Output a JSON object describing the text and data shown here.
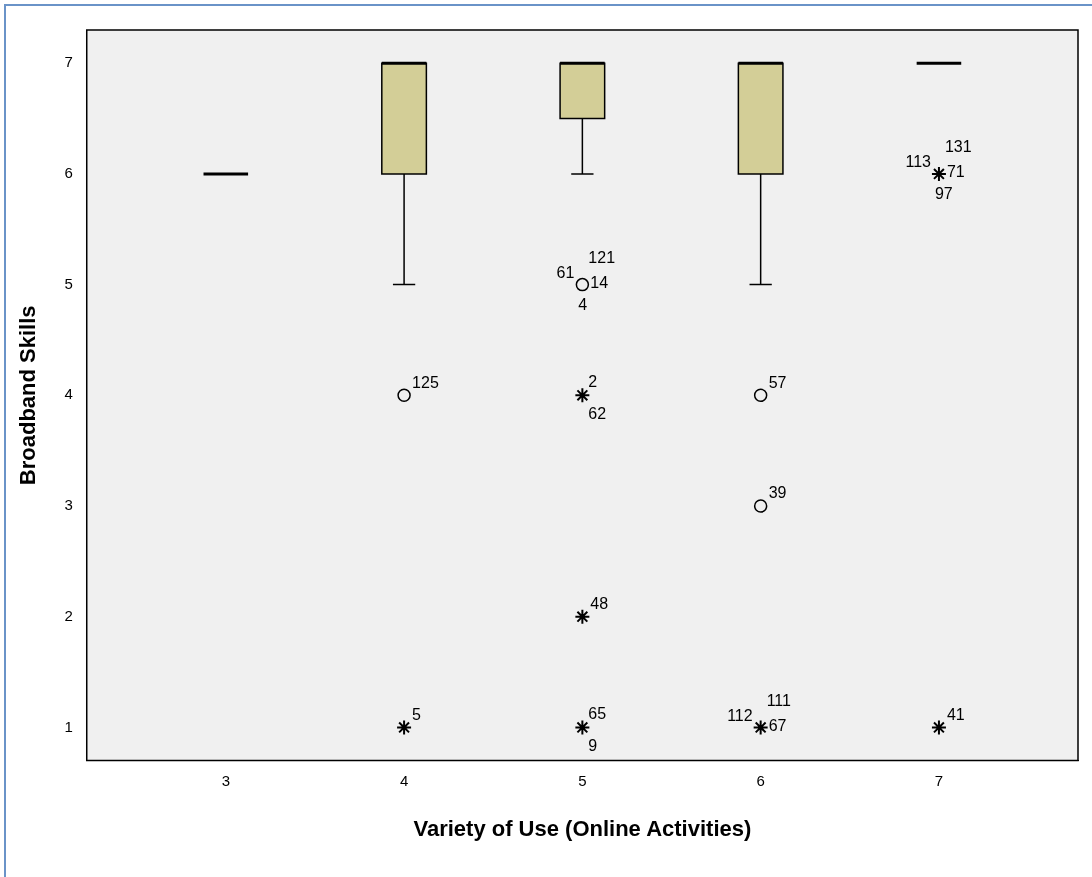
{
  "chart_data": {
    "type": "box",
    "xlabel": "Variety of Use (Online Activities)",
    "ylabel": "Broadband Skills",
    "categories": [
      "3",
      "4",
      "5",
      "6",
      "7"
    ],
    "ylim": [
      0.7,
      7.3
    ],
    "yticks": [
      1,
      2,
      3,
      4,
      5,
      6,
      7
    ],
    "grid": false,
    "legend": false,
    "colors": [
      "#000000",
      "#d3ce97",
      "#d3ce97",
      "#d3ce97",
      "#000000"
    ],
    "boxes": [
      {
        "low": 6,
        "q1": 6,
        "median": 6,
        "q3": 6,
        "high": 6
      },
      {
        "low": 5,
        "q1": 6,
        "median": 7,
        "q3": 7,
        "high": 7
      },
      {
        "low": 6,
        "q1": 6.5,
        "median": 7,
        "q3": 7,
        "high": 7
      },
      {
        "low": 5,
        "q1": 6,
        "median": 7,
        "q3": 7,
        "high": 7
      },
      {
        "low": 7,
        "q1": 7,
        "median": 7,
        "q3": 7,
        "high": 7
      }
    ],
    "series": [
      {
        "type": "scatter",
        "marker": "circle",
        "color": "#000000",
        "x": [
          "4",
          "5",
          "6",
          "6"
        ],
        "values": [
          4,
          5,
          4,
          3
        ]
      },
      {
        "type": "scatter",
        "marker": "cross",
        "color": "#000000",
        "x": [
          "4",
          "5",
          "5",
          "5",
          "6",
          "7",
          "7"
        ],
        "values": [
          1,
          4,
          2,
          1,
          1,
          6,
          1
        ]
      }
    ],
    "annotations": [
      {
        "text": "125",
        "x": "4",
        "y": 4
      },
      {
        "text": "5",
        "x": "4",
        "y": 1
      },
      {
        "text": "61",
        "x": "5",
        "y": 5
      },
      {
        "text": "121",
        "x": "5",
        "y": 5
      },
      {
        "text": "14",
        "x": "5",
        "y": 5
      },
      {
        "text": "4",
        "x": "5",
        "y": 5
      },
      {
        "text": "2",
        "x": "5",
        "y": 4
      },
      {
        "text": "62",
        "x": "5",
        "y": 4
      },
      {
        "text": "48",
        "x": "5",
        "y": 2
      },
      {
        "text": "65",
        "x": "5",
        "y": 1
      },
      {
        "text": "9",
        "x": "5",
        "y": 1
      },
      {
        "text": "57",
        "x": "6",
        "y": 4
      },
      {
        "text": "39",
        "x": "6",
        "y": 3
      },
      {
        "text": "112",
        "x": "6",
        "y": 1
      },
      {
        "text": "111",
        "x": "6",
        "y": 1
      },
      {
        "text": "67",
        "x": "6",
        "y": 1
      },
      {
        "text": "113",
        "x": "7",
        "y": 6
      },
      {
        "text": "131",
        "x": "7",
        "y": 6
      },
      {
        "text": "71",
        "x": "7",
        "y": 6
      },
      {
        "text": "97",
        "x": "7",
        "y": 6
      },
      {
        "text": "41",
        "x": "7",
        "y": 1
      }
    ]
  }
}
